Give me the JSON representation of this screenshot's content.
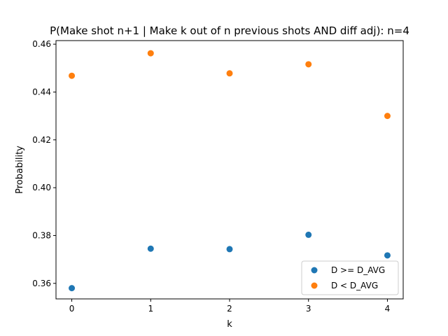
{
  "chart_data": {
    "type": "scatter",
    "title": "P(Make shot n+1 | Make k out of n previous shots AND diff adj): n=4",
    "xlabel": "k",
    "ylabel": "Probability",
    "xlim": [
      -0.2,
      4.2
    ],
    "ylim": [
      0.3535,
      0.4615
    ],
    "x_ticks": [
      0,
      1,
      2,
      3,
      4
    ],
    "x_tick_labels": [
      "0",
      "1",
      "2",
      "3",
      "4"
    ],
    "y_ticks": [
      0.36,
      0.38,
      0.4,
      0.42,
      0.44,
      0.46
    ],
    "y_tick_labels": [
      "0.36",
      "0.38",
      "0.40",
      "0.42",
      "0.44",
      "0.46"
    ],
    "grid": false,
    "legend_position": "lower right",
    "series": [
      {
        "name": "D >= D_AVG",
        "color": "#1f77b4",
        "x": [
          0,
          1,
          2,
          3,
          4
        ],
        "values": [
          0.358,
          0.3745,
          0.3743,
          0.3803,
          0.3717
        ]
      },
      {
        "name": "D < D_AVG",
        "color": "#ff7f0e",
        "x": [
          0,
          1,
          2,
          3,
          4
        ],
        "values": [
          0.4468,
          0.4562,
          0.4478,
          0.4516,
          0.43
        ]
      }
    ]
  }
}
